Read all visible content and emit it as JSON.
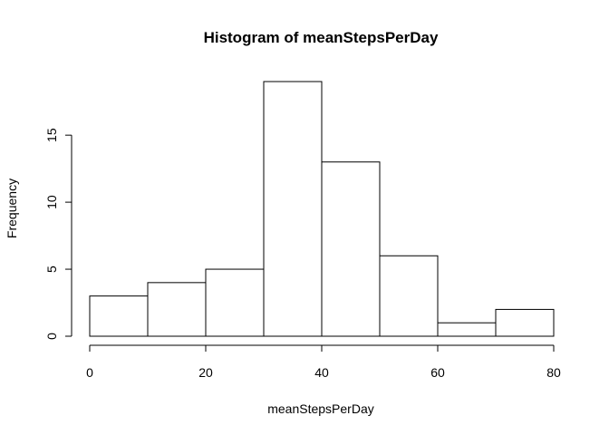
{
  "chart_data": {
    "type": "bar",
    "title": "Histogram of meanStepsPerDay",
    "xlabel": "meanStepsPerDay",
    "ylabel": "Frequency",
    "bins": [
      {
        "start": 0,
        "end": 10,
        "count": 3
      },
      {
        "start": 10,
        "end": 20,
        "count": 4
      },
      {
        "start": 20,
        "end": 30,
        "count": 5
      },
      {
        "start": 30,
        "end": 40,
        "count": 19
      },
      {
        "start": 40,
        "end": 50,
        "count": 13
      },
      {
        "start": 50,
        "end": 60,
        "count": 6
      },
      {
        "start": 60,
        "end": 70,
        "count": 1
      },
      {
        "start": 70,
        "end": 80,
        "count": 2
      }
    ],
    "xlim": [
      0,
      80
    ],
    "ylim": [
      0,
      19
    ],
    "x_ticks": [
      0,
      20,
      40,
      60,
      80
    ],
    "y_ticks": [
      0,
      5,
      10,
      15
    ],
    "grid": false,
    "bar_fill": "#ffffff",
    "bar_stroke": "#000000"
  }
}
